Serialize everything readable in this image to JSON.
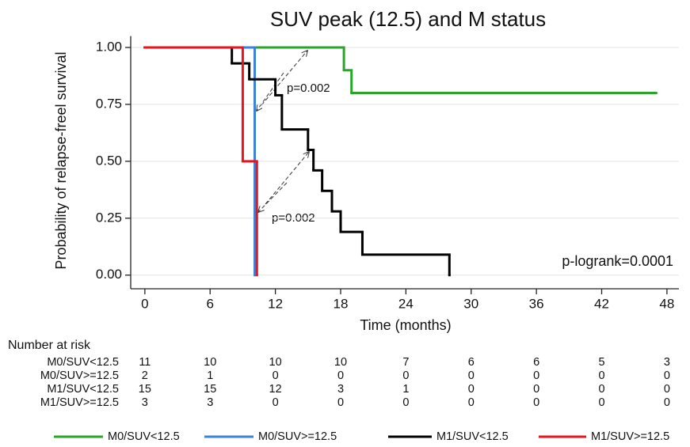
{
  "chart_data": {
    "type": "km-step",
    "title": "SUV peak (12.5) and M status",
    "x_label": "Time (months)",
    "y_label": "Probability of relapse-freel survival",
    "xlim": [
      -1.3,
      49.1
    ],
    "ylim": [
      -0.06,
      1.05
    ],
    "xticks": [
      0,
      6,
      12,
      18,
      24,
      30,
      36,
      42,
      48
    ],
    "yticks": [
      {
        "value": 1,
        "label": "1.00"
      },
      {
        "value": 0.75,
        "label": "0.75"
      },
      {
        "value": 0.5,
        "label": "0.50"
      },
      {
        "value": 0.25,
        "label": "0.25"
      },
      {
        "value": 0,
        "label": "0.00"
      }
    ],
    "grid": true,
    "series": [
      {
        "name": "M0/SUV<12.5",
        "color": "#2aa52a",
        "x": [
          0,
          18.3,
          19.0,
          47
        ],
        "values": [
          1,
          0.9,
          0.8,
          0.8
        ]
      },
      {
        "name": "M0/SUV>=12.5",
        "color": "#3c82d8",
        "x": [
          0,
          10.1
        ],
        "values": [
          1,
          0
        ]
      },
      {
        "name": "M1/SUV<12.5",
        "color": "#000000",
        "x": [
          0,
          8,
          9.6,
          12,
          12.6,
          15,
          15.5,
          16.3,
          17.2,
          18,
          20,
          28
        ],
        "values": [
          1,
          0.93,
          0.86,
          0.79,
          0.64,
          0.55,
          0.46,
          0.37,
          0.28,
          0.19,
          0.09,
          0
        ]
      },
      {
        "name": "M1/SUV>=12.5",
        "color": "#e8141e",
        "x": [
          0,
          9,
          10.3
        ],
        "values": [
          1,
          0.5,
          0
        ]
      }
    ],
    "annotations": [
      "p=0.002",
      "p=0.002",
      "p-logrank=0.0001"
    ],
    "risk_table": {
      "title": "Number at risk",
      "rows": [
        {
          "name": "M0/SUV<12.5",
          "values": [
            11,
            10,
            10,
            10,
            7,
            6,
            6,
            5,
            3
          ]
        },
        {
          "name": "M0/SUV>=12.5",
          "values": [
            2,
            1,
            0,
            0,
            0,
            0,
            0,
            0,
            0
          ]
        },
        {
          "name": "M1/SUV<12.5",
          "values": [
            15,
            15,
            12,
            3,
            1,
            0,
            0,
            0,
            0
          ]
        },
        {
          "name": "M1/SUV>=12.5",
          "values": [
            3,
            3,
            0,
            0,
            0,
            0,
            0,
            0,
            0
          ]
        }
      ]
    }
  }
}
